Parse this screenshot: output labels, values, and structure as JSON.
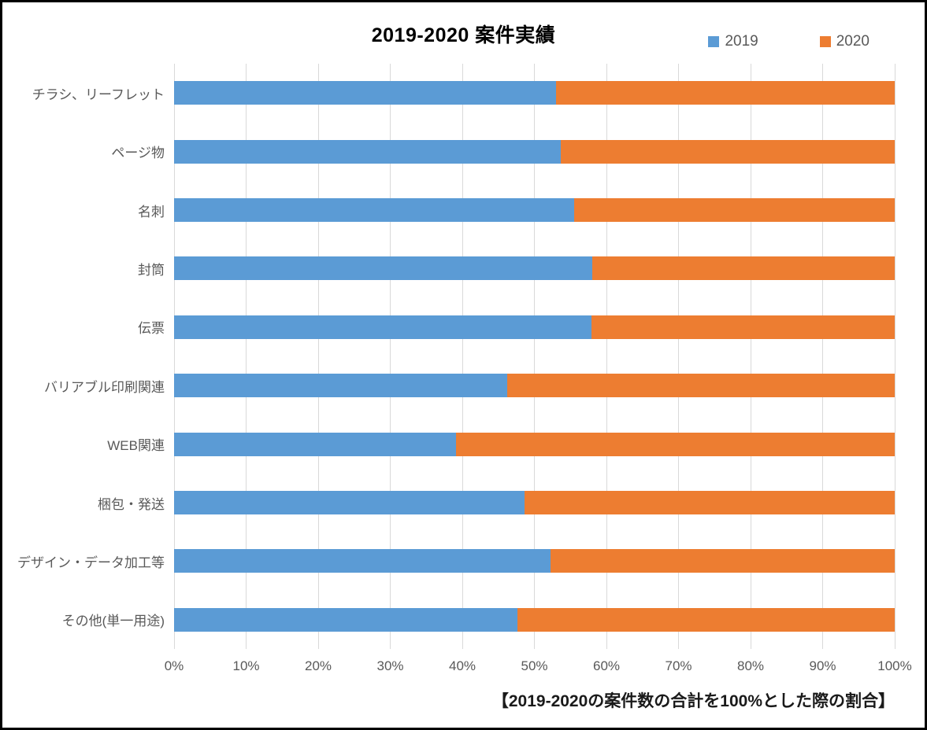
{
  "title": "2019-2020 案件実績",
  "footnote": "【2019-2020の案件数の合計を100%とした際の割合】",
  "legend": [
    {
      "label": "2019",
      "color": "#5B9BD5"
    },
    {
      "label": "2020",
      "color": "#ED7D31"
    }
  ],
  "colors": {
    "series_2019": "#5B9BD5",
    "series_2020": "#ED7D31",
    "gridline": "#D9D9D9",
    "axis_text": "#595959",
    "title_text": "#000000"
  },
  "chart_data": {
    "type": "bar",
    "variant": "stacked-100",
    "orientation": "horizontal",
    "title": "2019-2020 案件実績",
    "categories": [
      "チラシ、リーフレット",
      "ページ物",
      "名刺",
      "封筒",
      "伝票",
      "バリアブル印刷関連",
      "WEB関連",
      "梱包・発送",
      "デザイン・データ加工等",
      "その他(単一用途)"
    ],
    "series": [
      {
        "name": "2019",
        "color": "#5B9BD5",
        "values": [
          53.0,
          53.7,
          55.5,
          58.0,
          57.9,
          46.2,
          39.1,
          48.6,
          52.2,
          47.7
        ]
      },
      {
        "name": "2020",
        "color": "#ED7D31",
        "values": [
          47.0,
          46.3,
          44.5,
          42.0,
          42.1,
          53.8,
          60.9,
          51.4,
          47.8,
          52.3
        ]
      }
    ],
    "xlim": [
      0,
      100
    ],
    "x_ticks": [
      "0%",
      "10%",
      "20%",
      "30%",
      "40%",
      "50%",
      "60%",
      "70%",
      "80%",
      "90%",
      "100%"
    ],
    "xlabel": "",
    "ylabel": "",
    "grid": true,
    "legend_position": "top-right"
  }
}
